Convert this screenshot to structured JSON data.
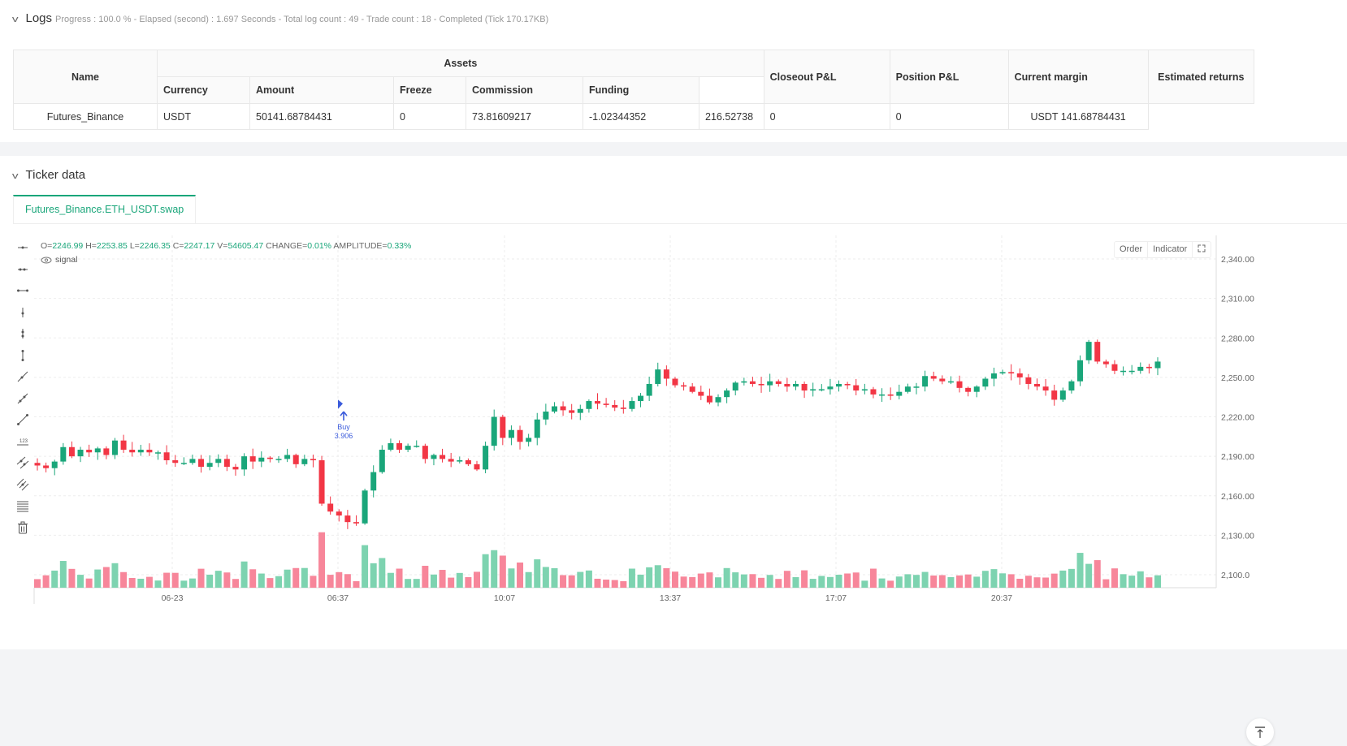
{
  "logs": {
    "title": "Logs",
    "meta": "Progress : 100.0 % - Elapsed (second) : 1.697  Seconds - Total log count : 49 - Trade count : 18 - Completed (Tick 170.17KB)",
    "table": {
      "headers": {
        "name": "Name",
        "assets": "Assets",
        "currency": "Currency",
        "amount": "Amount",
        "freeze": "Freeze",
        "commission": "Commission",
        "funding": "Funding",
        "closeout_pnl": "Closeout P&L",
        "position_pnl": "Position P&L",
        "current_margin": "Current margin",
        "estimated_returns": "Estimated returns"
      },
      "rows": [
        {
          "name": "Futures_Binance",
          "currency": "USDT",
          "amount": "50141.68784431",
          "freeze": "0",
          "commission": "73.81609217",
          "funding": "-1.02344352",
          "closeout_pnl": "216.52738",
          "position_pnl": "0",
          "current_margin": "0",
          "estimated_returns": "USDT 141.68784431"
        }
      ]
    }
  },
  "ticker": {
    "title": "Ticker data",
    "tab": "Futures_Binance.ETH_USDT.swap",
    "ohlc": {
      "o_label": "O=",
      "o": "2246.99",
      "h_label": "H=",
      "h": "2253.85",
      "l_label": "L=",
      "l": "2246.35",
      "c_label": "C=",
      "c": "2247.17",
      "v_label": "V=",
      "v": "54605.47",
      "change_label": "CHANGE=",
      "change": "0.01%",
      "amplitude_label": "AMPLITUDE=",
      "amplitude": "0.33%"
    },
    "signal_label": "signal",
    "buttons": {
      "order": "Order",
      "indicator": "Indicator"
    },
    "colors": {
      "up": "#1aa67a",
      "down": "#f23645",
      "up_vol": "#7dd3b0",
      "down_vol": "#f7869a",
      "buy": "#3b5bdb"
    },
    "marker": {
      "label": "Buy",
      "value": "3.906"
    }
  },
  "chart_data": {
    "type": "candlestick",
    "title": "Futures_Binance.ETH_USDT.swap",
    "y_ticks": [
      2340,
      2310,
      2280,
      2250,
      2220,
      2190,
      2160,
      2130,
      2100
    ],
    "y_tick_labels": [
      "2,340.00",
      "2,310.00",
      "2,280.00",
      "2,250.00",
      "2,220.00",
      "2,190.00",
      "2,160.00",
      "2,130.00",
      "2,100.0"
    ],
    "x_tick_labels": [
      "06-23",
      "06:37",
      "10:07",
      "13:37",
      "17:07",
      "20:37"
    ],
    "ylim": [
      2093,
      2352
    ],
    "closes": [
      2183,
      2181,
      2186,
      2197,
      2190,
      2195,
      2193,
      2196,
      2191,
      2202,
      2195,
      2193,
      2195,
      2193,
      2193,
      2187,
      2185,
      2185,
      2188,
      2182,
      2185,
      2188,
      2182,
      2180,
      2190,
      2186,
      2189,
      2188,
      2188,
      2191,
      2184,
      2188,
      2187,
      2154,
      2148,
      2145,
      2140,
      2139,
      2164,
      2178,
      2195,
      2200,
      2195,
      2198,
      2198,
      2188,
      2191,
      2188,
      2186,
      2187,
      2184,
      2180,
      2198,
      2220,
      2204,
      2210,
      2201,
      2204,
      2218,
      2224,
      2228,
      2225,
      2223,
      2226,
      2232,
      2230,
      2229,
      2227,
      2226,
      2232,
      2236,
      2245,
      2256,
      2249,
      2244,
      2243,
      2239,
      2236,
      2231,
      2235,
      2240,
      2246,
      2247,
      2245,
      2244,
      2247,
      2245,
      2243,
      2245,
      2240,
      2241,
      2241,
      2243,
      2245,
      2244,
      2240,
      2241,
      2237,
      2237,
      2236,
      2239,
      2243,
      2243,
      2251,
      2249,
      2247,
      2247,
      2242,
      2239,
      2243,
      2249,
      2253,
      2254,
      2253,
      2250,
      2245,
      2243,
      2240,
      2233,
      2240,
      2247,
      2263,
      2277,
      2262,
      2260,
      2255,
      2255,
      2255,
      2258,
      2257,
      2262
    ],
    "series_note": "approximate closes read off chart"
  },
  "toolbar": {
    "tools": [
      "horizontal-ray-icon",
      "horizontal-segment-icon",
      "horizontal-line-icon",
      "vertical-ray-icon",
      "vertical-segment-icon",
      "vertical-line-icon",
      "trend-ray-icon",
      "trend-segment-icon",
      "trend-line-icon",
      "price-label-icon",
      "parallel-channel-icon",
      "multi-channel-icon",
      "fibonacci-icon",
      "trash-icon"
    ]
  }
}
